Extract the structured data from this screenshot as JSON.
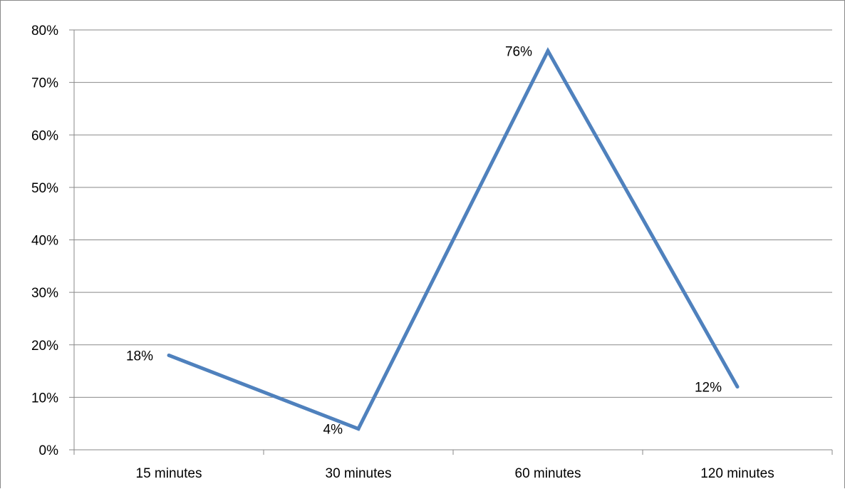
{
  "chart_data": {
    "type": "line",
    "categories": [
      "15 minutes",
      "30 minutes",
      "60 minutes",
      "120 minutes"
    ],
    "series": [
      {
        "values": [
          18,
          4,
          76,
          12
        ],
        "data_labels": [
          "18%",
          "4%",
          "76%",
          "12%"
        ],
        "color": "#4f81bd"
      }
    ],
    "ylim": [
      0,
      80
    ],
    "yticks": [
      0,
      10,
      20,
      30,
      40,
      50,
      60,
      70,
      80
    ],
    "ytick_labels": [
      "0%",
      "10%",
      "20%",
      "30%",
      "40%",
      "50%",
      "60%",
      "70%",
      "80%"
    ],
    "grid": true,
    "legend": "none"
  }
}
